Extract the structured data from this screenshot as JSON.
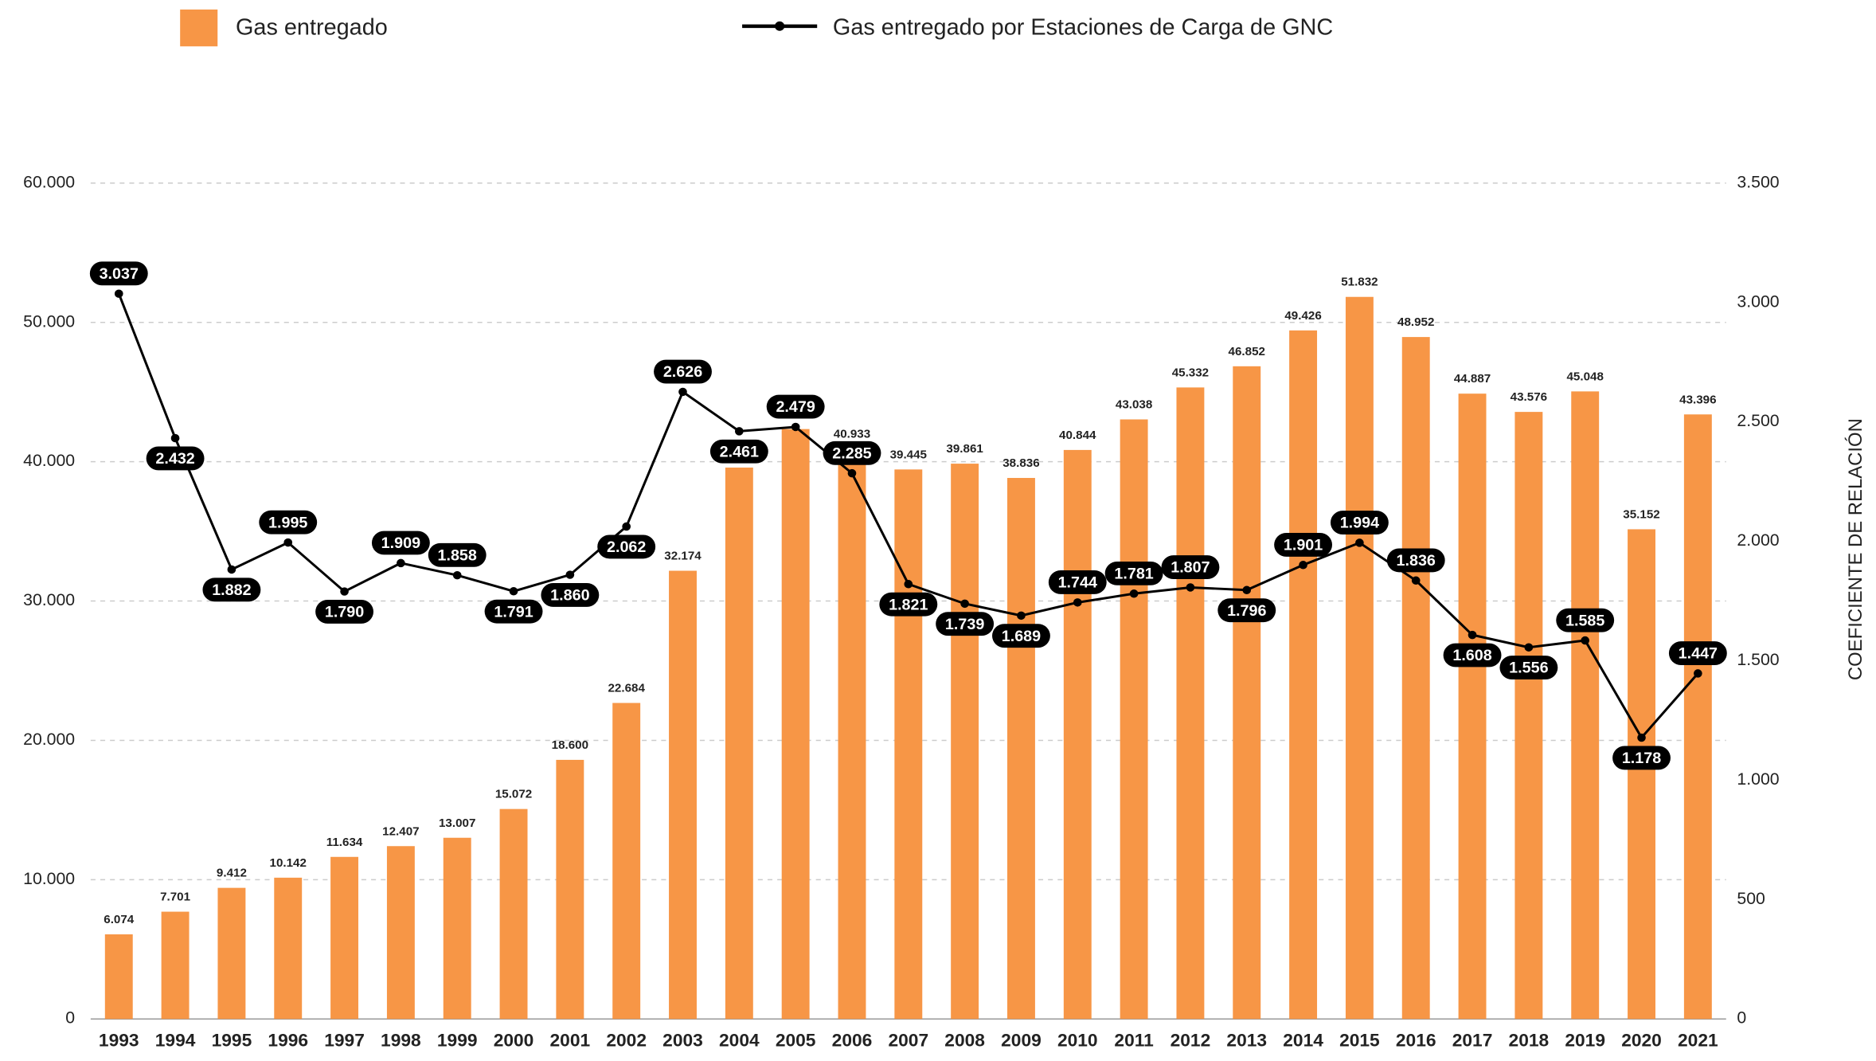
{
  "chart_data": {
    "type": "combo",
    "categories": [
      "1993",
      "1994",
      "1995",
      "1996",
      "1997",
      "1998",
      "1999",
      "2000",
      "2001",
      "2002",
      "2003",
      "2004",
      "2005",
      "2006",
      "2007",
      "2008",
      "2009",
      "2010",
      "2011",
      "2012",
      "2013",
      "2014",
      "2015",
      "2016",
      "2017",
      "2018",
      "2019",
      "2020",
      "2021"
    ],
    "series": [
      {
        "name": "Gas entregado",
        "type": "bar",
        "color": "#f79646",
        "values": [
          6074,
          7701,
          9412,
          10142,
          11634,
          12407,
          13007,
          15072,
          18600,
          22684,
          32174,
          39580,
          42345,
          40933,
          39445,
          39861,
          38836,
          40844,
          43038,
          45332,
          46852,
          49426,
          51832,
          48952,
          44887,
          43576,
          45048,
          35152,
          43396
        ],
        "value_labels": [
          "6.074",
          "7.701",
          "9.412",
          "10.142",
          "11.634",
          "12.407",
          "13.007",
          "15.072",
          "18.600",
          "22.684",
          "32.174",
          "39.580",
          "42.345",
          "40.933",
          "39.445",
          "39.861",
          "38.836",
          "40.844",
          "43.038",
          "45.332",
          "46.852",
          "49.426",
          "51.832",
          "48.952",
          "44.887",
          "43.576",
          "45.048",
          "35.152",
          "43.396"
        ]
      },
      {
        "name": "Gas entregado por Estaciones de Carga de GNC",
        "type": "line",
        "axis": "y2",
        "color": "#000000",
        "values": [
          3037,
          2432,
          1882,
          1995,
          1790,
          1909,
          1858,
          1791,
          1860,
          2062,
          2626,
          2461,
          2479,
          2285,
          1821,
          1739,
          1689,
          1744,
          1781,
          1807,
          1796,
          1901,
          1994,
          1836,
          1608,
          1556,
          1585,
          1178,
          1447
        ],
        "value_labels": [
          "3.037",
          "2.432",
          "1.882",
          "1.995",
          "1.790",
          "1.909",
          "1.858",
          "1.791",
          "1.860",
          "2.062",
          "2.626",
          "2.461",
          "2.479",
          "2.285",
          "1.821",
          "1.739",
          "1.689",
          "1.744",
          "1.781",
          "1.807",
          "1.796",
          "1.901",
          "1.994",
          "1.836",
          "1.608",
          "1.556",
          "1.585",
          "1.178",
          "1.447"
        ]
      }
    ],
    "ylim": [
      0,
      60000
    ],
    "yticks": [
      0,
      {
        "value": 10000,
        "label": "10.000"
      },
      {
        "value": 20000,
        "label": "20.000"
      },
      {
        "value": 30000,
        "label": "30.000"
      },
      {
        "value": 40000,
        "label": "40.000"
      },
      {
        "value": 50000,
        "label": "50.000"
      },
      {
        "value": 60000,
        "label": "60.000"
      }
    ],
    "y2lim": [
      0,
      3500
    ],
    "y2ticks": [
      0,
      500,
      {
        "value": 1000,
        "label": "1.000"
      },
      {
        "value": 1500,
        "label": "1.500"
      },
      {
        "value": 2000,
        "label": "2.000"
      },
      {
        "value": 2500,
        "label": "2.500"
      },
      {
        "value": 3000,
        "label": "3.000"
      },
      {
        "value": 3500,
        "label": "3.500"
      }
    ],
    "y2label": "COEFICIENTE DE RELACIÓN",
    "grid": true
  }
}
